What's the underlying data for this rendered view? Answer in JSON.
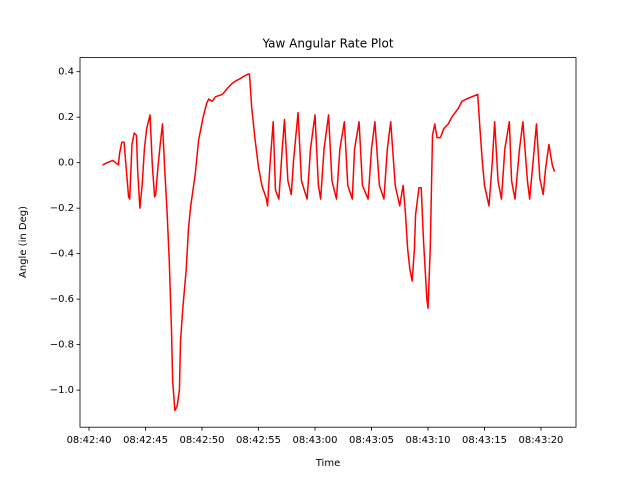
{
  "chart_data": {
    "type": "line",
    "title": "Yaw Angular Rate Plot",
    "xlabel": "Time",
    "ylabel": "Angle (in Deg)",
    "xlim": [
      "08:42:39.2",
      "08:43:23.1"
    ],
    "xticks": [
      "08:42:40",
      "08:42:45",
      "08:42:50",
      "08:42:55",
      "08:43:00",
      "08:43:05",
      "08:43:10",
      "08:43:15",
      "08:43:20"
    ],
    "ylim": [
      -1.163,
      0.462
    ],
    "yticks": [
      {
        "value": -1.0,
        "label": "−1.0"
      },
      {
        "value": -0.8,
        "label": "−0.8"
      },
      {
        "value": -0.6,
        "label": "−0.6"
      },
      {
        "value": -0.4,
        "label": "−0.4"
      },
      {
        "value": -0.2,
        "label": "−0.2"
      },
      {
        "value": 0,
        "label": "0.0"
      },
      0.2,
      0.4
    ],
    "grid": false,
    "series": [
      {
        "color": "#ff0000",
        "x": [
          "08:42:41.2",
          "08:42:41.6",
          "08:42:42.1",
          "08:42:42.6",
          "08:42:42.7",
          "08:42:42.9",
          "08:42:43.1",
          "08:42:43.3",
          "08:42:43.5",
          "08:42:43.6",
          "08:42:43.8",
          "08:42:44.0",
          "08:42:44.2",
          "08:42:44.3",
          "08:42:44.5",
          "08:42:44.7",
          "08:42:44.9",
          "08:42:45.1",
          "08:42:45.4",
          "08:42:45.6",
          "08:42:45.8",
          "08:42:45.9",
          "08:42:46.1",
          "08:42:46.3",
          "08:42:46.5",
          "08:42:46.7",
          "08:42:46.9",
          "08:42:47.1",
          "08:42:47.3",
          "08:42:47.4",
          "08:42:47.6",
          "08:42:47.8",
          "08:42:48.0",
          "08:42:48.1",
          "08:42:48.3",
          "08:42:48.6",
          "08:42:48.8",
          "08:42:49.0",
          "08:42:49.4",
          "08:42:49.7",
          "08:42:50.1",
          "08:42:50.4",
          "08:42:50.6",
          "08:42:50.9",
          "08:42:51.2",
          "08:42:51.8",
          "08:42:52.3",
          "08:42:52.7",
          "08:42:53.0",
          "08:42:53.4",
          "08:42:53.7",
          "08:42:54.1",
          "08:42:54.2",
          "08:42:54.4",
          "08:42:54.7",
          "08:42:55.0",
          "08:42:55.3",
          "08:42:55.7",
          "08:42:55.8",
          "08:42:56.0",
          "08:42:56.3",
          "08:42:56.5",
          "08:42:56.8",
          "08:42:57.1",
          "08:42:57.3",
          "08:42:57.6",
          "08:42:57.9",
          "08:42:58.1",
          "08:42:58.5",
          "08:42:58.8",
          "08:42:59.3",
          "08:42:59.6",
          "08:43:00.0",
          "08:43:00.3",
          "08:43:00.5",
          "08:43:00.8",
          "08:43:01.2",
          "08:43:01.5",
          "08:43:01.9",
          "08:43:02.2",
          "08:43:02.6",
          "08:43:02.9",
          "08:43:03.3",
          "08:43:03.5",
          "08:43:03.9",
          "08:43:04.2",
          "08:43:04.7",
          "08:43:05.0",
          "08:43:05.3",
          "08:43:05.7",
          "08:43:06.1",
          "08:43:06.4",
          "08:43:06.7",
          "08:43:07.1",
          "08:43:07.5",
          "08:43:07.8",
          "08:43:08.0",
          "08:43:08.2",
          "08:43:08.4",
          "08:43:08.6",
          "08:43:08.8",
          "08:43:08.9",
          "08:43:09.2",
          "08:43:09.4",
          "08:43:09.6",
          "08:43:09.9",
          "08:43:10.0",
          "08:43:10.2",
          "08:43:10.4",
          "08:43:10.6",
          "08:43:10.8",
          "08:43:11.1",
          "08:43:11.4",
          "08:43:11.8",
          "08:43:12.1",
          "08:43:12.7",
          "08:43:13.0",
          "08:43:13.4",
          "08:43:13.9",
          "08:43:14.4",
          "08:43:14.6",
          "08:43:14.8",
          "08:43:15.0",
          "08:43:15.4",
          "08:43:15.7",
          "08:43:15.9",
          "08:43:16.2",
          "08:43:16.5",
          "08:43:16.8",
          "08:43:17.2",
          "08:43:17.4",
          "08:43:17.7",
          "08:43:18.1",
          "08:43:18.4",
          "08:43:18.8",
          "08:43:19.0",
          "08:43:19.4",
          "08:43:19.6",
          "08:43:19.9",
          "08:43:20.2",
          "08:43:20.4",
          "08:43:20.7",
          "08:43:21.0",
          "08:43:21.2"
        ],
        "values": [
          -0.01,
          0.0,
          0.01,
          -0.01,
          0.04,
          0.09,
          0.09,
          -0.03,
          -0.15,
          -0.16,
          0.08,
          0.13,
          0.12,
          -0.03,
          -0.2,
          -0.1,
          0.06,
          0.15,
          0.21,
          -0.01,
          -0.15,
          -0.14,
          -0.02,
          0.08,
          0.17,
          -0.03,
          -0.21,
          -0.43,
          -0.74,
          -0.96,
          -1.09,
          -1.07,
          -1.0,
          -0.78,
          -0.64,
          -0.47,
          -0.29,
          -0.19,
          -0.05,
          0.1,
          0.2,
          0.26,
          0.28,
          0.27,
          0.29,
          0.3,
          0.33,
          0.35,
          0.36,
          0.37,
          0.38,
          0.39,
          0.39,
          0.24,
          0.1,
          -0.02,
          -0.1,
          -0.16,
          -0.19,
          -0.02,
          0.18,
          -0.12,
          -0.16,
          0.06,
          0.19,
          -0.08,
          -0.14,
          0.01,
          0.22,
          -0.08,
          -0.16,
          0.06,
          0.21,
          -0.1,
          -0.16,
          0.06,
          0.21,
          -0.08,
          -0.16,
          0.06,
          0.18,
          -0.1,
          -0.16,
          0.06,
          0.18,
          -0.1,
          -0.16,
          0.06,
          0.18,
          -0.1,
          -0.16,
          0.06,
          0.18,
          -0.1,
          -0.19,
          -0.1,
          -0.22,
          -0.38,
          -0.47,
          -0.52,
          -0.38,
          -0.23,
          -0.11,
          -0.11,
          -0.34,
          -0.6,
          -0.64,
          -0.38,
          0.12,
          0.17,
          0.11,
          0.11,
          0.15,
          0.17,
          0.2,
          0.24,
          0.27,
          0.28,
          0.29,
          0.3,
          0.15,
          0.01,
          -0.1,
          -0.19,
          0.01,
          0.18,
          -0.08,
          -0.16,
          0.06,
          0.18,
          -0.08,
          -0.16,
          0.06,
          0.18,
          -0.08,
          -0.16,
          0.06,
          0.17,
          -0.07,
          -0.14,
          -0.03,
          0.08,
          -0.01,
          -0.04
        ]
      }
    ]
  }
}
